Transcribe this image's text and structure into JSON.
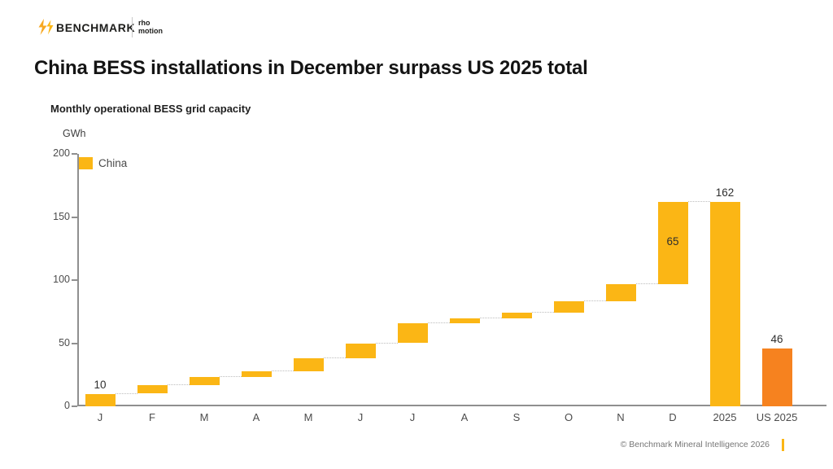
{
  "header": {
    "brand": "BENCHMARK",
    "partner": {
      "line1": "rho",
      "line2": "motion"
    }
  },
  "title": "China BESS installations in December surpass US 2025 total",
  "colors": {
    "china_yellow": "#FBB615",
    "us_orange": "#F6821F",
    "axis_gray": "#8f8f8f",
    "accent": "#FBB615"
  },
  "chart_data": {
    "type": "bar",
    "subtype": "waterfall",
    "title": "Monthly operational BESS grid capacity",
    "unit": "GWh",
    "ylim": [
      0,
      200
    ],
    "y_ticks": [
      200,
      150,
      100,
      50,
      0
    ],
    "grid": false,
    "legend_position": "top-left",
    "legend": [
      {
        "label": "China",
        "color": "#FBB615"
      }
    ],
    "categories": [
      "J",
      "F",
      "M",
      "A",
      "M",
      "J",
      "J",
      "A",
      "S",
      "O",
      "N",
      "D",
      "2025",
      "US 2025"
    ],
    "bars": [
      {
        "label": "J",
        "start": 0,
        "end": 10,
        "color": "#FBB615",
        "connect": true,
        "value_label": "10",
        "value_label_pos": "above"
      },
      {
        "label": "F",
        "start": 10,
        "end": 17,
        "color": "#FBB615",
        "connect": true
      },
      {
        "label": "M",
        "start": 17,
        "end": 23.5,
        "color": "#FBB615",
        "connect": true
      },
      {
        "label": "A",
        "start": 23.5,
        "end": 27.5,
        "color": "#FBB615",
        "connect": true
      },
      {
        "label": "M",
        "start": 27.5,
        "end": 38,
        "color": "#FBB615",
        "connect": true
      },
      {
        "label": "J",
        "start": 38,
        "end": 50,
        "color": "#FBB615",
        "connect": true
      },
      {
        "label": "J",
        "start": 50,
        "end": 66,
        "color": "#FBB615",
        "connect": true
      },
      {
        "label": "A",
        "start": 66,
        "end": 69.5,
        "color": "#FBB615",
        "connect": true
      },
      {
        "label": "S",
        "start": 69.5,
        "end": 74.5,
        "color": "#FBB615",
        "connect": true
      },
      {
        "label": "O",
        "start": 74.5,
        "end": 83.5,
        "color": "#FBB615",
        "connect": true
      },
      {
        "label": "N",
        "start": 83.5,
        "end": 97,
        "color": "#FBB615",
        "connect": true
      },
      {
        "label": "D",
        "start": 97,
        "end": 162,
        "color": "#FBB615",
        "connect": true,
        "value_label": "65",
        "value_label_pos": "inside"
      },
      {
        "label": "2025",
        "start": 0,
        "end": 162,
        "color": "#FBB615",
        "connect": false,
        "value_label": "162",
        "value_label_pos": "above"
      },
      {
        "label": "US 2025",
        "start": 0,
        "end": 46,
        "color": "#F6821F",
        "connect": false,
        "value_label": "46",
        "value_label_pos": "above"
      }
    ]
  },
  "footer": {
    "copyright": "© Benchmark Mineral Intelligence 2026"
  }
}
